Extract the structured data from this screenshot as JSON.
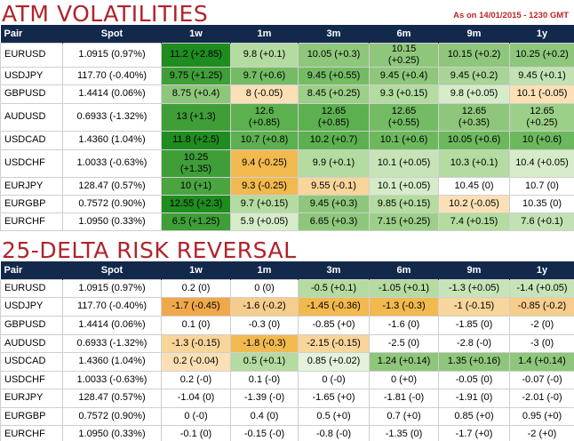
{
  "atm": {
    "title": "ATM VOLATILITIES",
    "as_of": "As on 14/01/2015 - 1230 GMT",
    "headers": [
      "Pair",
      "Spot",
      "1w",
      "1m",
      "3m",
      "6m",
      "9m",
      "1y"
    ],
    "rows": [
      {
        "pair": "EURUSD",
        "spot": "1.0915 (0.97%)",
        "cells": [
          "11.2 (+2.85)",
          "9.8 (+0.1)",
          "10.05 (+0.3)",
          "10.15\n(+0.25)",
          "10.15 (+0.2)",
          "10.25 (+0.2)"
        ],
        "colors": [
          "#1f8c1f",
          "#b4dba0",
          "#8ec77b",
          "#8ec77b",
          "#8ec77b",
          "#8ec77b"
        ]
      },
      {
        "pair": "USDJPY",
        "spot": "117.70 (-0.40%)",
        "cells": [
          "9.75 (+1.25)",
          "9.7 (+0.6)",
          "9.45 (+0.55)",
          "9.45 (+0.4)",
          "9.45 (+0.2)",
          "9.45 (+0.1)"
        ],
        "colors": [
          "#3f9e38",
          "#74bc64",
          "#74bc64",
          "#8ec77b",
          "#a8d496",
          "#c2e2b4"
        ]
      },
      {
        "pair": "GBPUSD",
        "spot": "1.4414 (0.06%)",
        "cells": [
          "8.75 (+0.4)",
          "8 (-0.05)",
          "8.45 (+0.25)",
          "9.3 (+0.15)",
          "9.8 (+0.05)",
          "10.1 (-0.05)"
        ],
        "colors": [
          "#8ec77b",
          "#fbe0b6",
          "#9ccf88",
          "#b4dba0",
          "#d6ecc9",
          "#fbe0b6"
        ]
      },
      {
        "pair": "AUDUSD",
        "spot": "0.6933 (-1.32%)",
        "cells": [
          "13 (+1.3)",
          "12.6\n(+0.85)",
          "12.65\n(+0.85)",
          "12.65\n(+0.55)",
          "12.65\n(+0.35)",
          "12.65\n(+0.25)"
        ],
        "colors": [
          "#3f9e38",
          "#5cb04f",
          "#5cb04f",
          "#74bc64",
          "#8ec77b",
          "#9ccf88"
        ]
      },
      {
        "pair": "USDCAD",
        "spot": "1.4360 (1.04%)",
        "cells": [
          "11.8 (+2.5)",
          "10.7 (+0.8)",
          "10.2 (+0.7)",
          "10.1 (+0.6)",
          "10.05 (+0.6)",
          "10 (+0.6)"
        ],
        "colors": [
          "#1f8c1f",
          "#5cb04f",
          "#5cb04f",
          "#6cb85d",
          "#6cb85d",
          "#6cb85d"
        ]
      },
      {
        "pair": "USDCHF",
        "spot": "1.0033 (-0.63%)",
        "cells": [
          "10.25\n(+1.35)",
          "9.4 (-0.25)",
          "9.9 (+0.1)",
          "10.1 (+0.05)",
          "10.3 (+0.1)",
          "10.4 (+0.05)"
        ],
        "colors": [
          "#3f9e38",
          "#f2b94f",
          "#b4dba0",
          "#c7e4b8",
          "#b4dba0",
          "#d6ecc9"
        ]
      },
      {
        "pair": "EURJPY",
        "spot": "128.47 (0.57%)",
        "cells": [
          "10 (+1)",
          "9.3 (-0.25)",
          "9.55 (-0.1)",
          "10.1 (+0.05)",
          "10.45 (0)",
          "10.7 (0)"
        ],
        "colors": [
          "#4aa541",
          "#f2b94f",
          "#f8d59a",
          "#d6ecc9",
          "#ffffff",
          "#ffffff"
        ]
      },
      {
        "pair": "EURGBP",
        "spot": "0.7572 (0.90%)",
        "cells": [
          "12.55 (+2.3)",
          "9.7 (+0.15)",
          "9.45 (+0.3)",
          "9.85 (+0.15)",
          "10.2 (-0.05)",
          "10.35 (0)"
        ],
        "colors": [
          "#1f8c1f",
          "#b4dba0",
          "#8ec77b",
          "#b4dba0",
          "#fbe0b6",
          "#ffffff"
        ]
      },
      {
        "pair": "EURCHF",
        "spot": "1.0950 (0.33%)",
        "cells": [
          "6.5 (+1.25)",
          "5.9 (+0.05)",
          "6.65 (+0.3)",
          "7.15 (+0.25)",
          "7.4 (+0.15)",
          "7.6 (+0.1)"
        ],
        "colors": [
          "#3f9e38",
          "#d6ecc9",
          "#8ec77b",
          "#9ccf88",
          "#b4dba0",
          "#c2e2b4"
        ]
      }
    ]
  },
  "rr": {
    "title": "25-DELTA RISK REVERSAL",
    "headers": [
      "Pair",
      "Spot",
      "1w",
      "1m",
      "3m",
      "6m",
      "9m",
      "1y"
    ],
    "rows": [
      {
        "pair": "EURUSD",
        "spot": "1.0915 (0.97%)",
        "cells": [
          "0.2 (0)",
          "0 (0)",
          "-0.5 (+0.1)",
          "-1.05 (+0.1)",
          "-1.3 (+0.05)",
          "-1.4 (+0.05)"
        ],
        "colors": [
          "#ffffff",
          "#ffffff",
          "#b4dba0",
          "#b4dba0",
          "#c7e4b8",
          "#c7e4b8"
        ]
      },
      {
        "pair": "USDJPY",
        "spot": "117.70 (-0.40%)",
        "cells": [
          "-1.7 (-0.45)",
          "-1.6 (-0.2)",
          "-1.45 (-0.36)",
          "-1.3 (-0.3)",
          "-1 (-0.15)",
          "-0.85 (-0.2)"
        ],
        "colors": [
          "#f0a94a",
          "#f6cd8c",
          "#f2b94f",
          "#f2b94f",
          "#f8d59a",
          "#f6cd8c"
        ]
      },
      {
        "pair": "GBPUSD",
        "spot": "1.4414 (0.06%)",
        "cells": [
          "0.1 (0)",
          "-0.3 (0)",
          "-0.85 (+0)",
          "-1.6 (0)",
          "-1.85 (0)",
          "-2 (0)"
        ],
        "colors": [
          "#ffffff",
          "#ffffff",
          "#ffffff",
          "#ffffff",
          "#ffffff",
          "#ffffff"
        ]
      },
      {
        "pair": "AUDUSD",
        "spot": "0.6933 (-1.32%)",
        "cells": [
          "-1.3 (-0.15)",
          "-1.8 (-0.3)",
          "-2.15 (-0.15)",
          "-2.5 (0)",
          "-2.8 (-0)",
          "-3 (0)"
        ],
        "colors": [
          "#f8d59a",
          "#f2b94f",
          "#f8d59a",
          "#ffffff",
          "#ffffff",
          "#ffffff"
        ]
      },
      {
        "pair": "USDCAD",
        "spot": "1.4360 (1.04%)",
        "cells": [
          "0.2 (-0.04)",
          "0.5 (+0.1)",
          "0.85 (+0.02)",
          "1.24 (+0.14)",
          "1.35 (+0.16)",
          "1.4 (+0.14)"
        ],
        "colors": [
          "#fbe0b6",
          "#b4dba0",
          "#e4f2dc",
          "#8ec77b",
          "#8ec77b",
          "#8ec77b"
        ]
      },
      {
        "pair": "USDCHF",
        "spot": "1.0033 (-0.63%)",
        "cells": [
          "0.2 (-0)",
          "0.1 (-0)",
          "0 (-0)",
          "0 (+0)",
          "-0.05 (0)",
          "-0.07 (-0)"
        ],
        "colors": [
          "#ffffff",
          "#ffffff",
          "#ffffff",
          "#ffffff",
          "#ffffff",
          "#ffffff"
        ]
      },
      {
        "pair": "EURJPY",
        "spot": "128.47 (0.57%)",
        "cells": [
          "-1.04 (0)",
          "-1.39 (-0)",
          "-1.65 (+0)",
          "-1.81 (-0)",
          "-1.91 (0)",
          "-2.01 (-0)"
        ],
        "colors": [
          "#ffffff",
          "#ffffff",
          "#ffffff",
          "#ffffff",
          "#ffffff",
          "#ffffff"
        ]
      },
      {
        "pair": "EURGBP",
        "spot": "0.7572 (0.90%)",
        "cells": [
          "0 (-0)",
          "0.4 (0)",
          "0.5 (+0)",
          "0.7 (+0)",
          "0.85 (+0)",
          "0.95 (+0)"
        ],
        "colors": [
          "#ffffff",
          "#ffffff",
          "#ffffff",
          "#ffffff",
          "#ffffff",
          "#ffffff"
        ]
      },
      {
        "pair": "EURCHF",
        "spot": "1.0950 (0.33%)",
        "cells": [
          "-0.1 (0)",
          "-0.15 (-0)",
          "-0.8 (-0)",
          "-1.35 (0)",
          "-1.7 (+0)",
          "-2 (+0)"
        ],
        "colors": [
          "#ffffff",
          "#ffffff",
          "#ffffff",
          "#ffffff",
          "#ffffff",
          "#ffffff"
        ]
      }
    ]
  }
}
